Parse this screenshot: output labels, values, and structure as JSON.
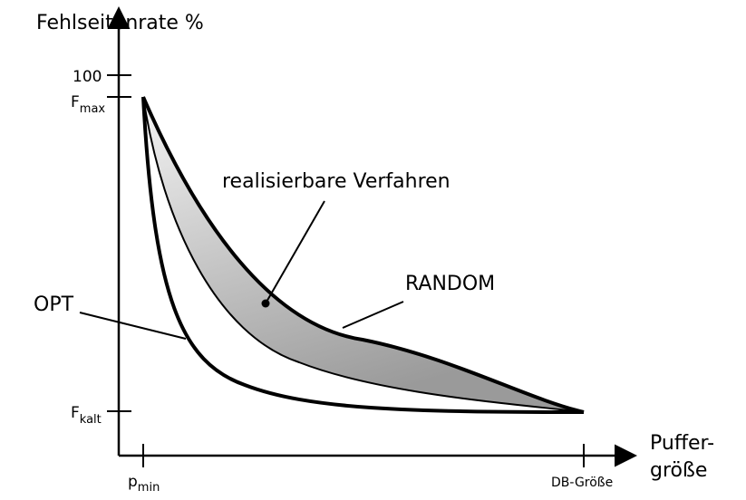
{
  "y_axis": {
    "title": "Fehlseitenrate %",
    "ticks": {
      "top": "100",
      "fmax_main": "F",
      "fmax_sub": "max",
      "fkalt_main": "F",
      "fkalt_sub": "kalt"
    }
  },
  "x_axis": {
    "title_line1": "Puffer-",
    "title_line2": "größe",
    "ticks": {
      "pmin_main": "p",
      "pmin_sub": "min",
      "db": "DB-Größe"
    }
  },
  "labels": {
    "region": "realisierbare Verfahren",
    "random": "RANDOM",
    "opt": "OPT"
  },
  "colors": {
    "stroke": "#000000",
    "fill_light": "#f2f2f2",
    "fill_dark": "#a0a0a0"
  }
}
